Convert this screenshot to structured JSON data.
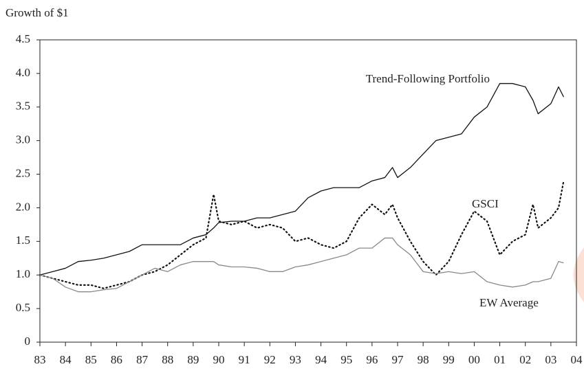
{
  "chart_data": {
    "type": "line",
    "y_label": "Growth of $1",
    "x": [
      83,
      83.5,
      84,
      84.5,
      85,
      85.5,
      86,
      86.5,
      87,
      87.5,
      88,
      88.5,
      89,
      89.5,
      89.8,
      90,
      90.5,
      91,
      91.5,
      92,
      92.5,
      93,
      93.5,
      94,
      94.5,
      95,
      95.5,
      96,
      96.5,
      96.8,
      97,
      97.5,
      98,
      98.5,
      99,
      99.5,
      100,
      100.5,
      101,
      101.5,
      102,
      102.3,
      102.5,
      103,
      103.3,
      103.5
    ],
    "series": [
      {
        "name": "Trend-Following Portfolio",
        "color": "#111111",
        "style": "solid",
        "values": [
          1.0,
          1.05,
          1.1,
          1.2,
          1.22,
          1.25,
          1.3,
          1.35,
          1.45,
          1.45,
          1.45,
          1.45,
          1.55,
          1.6,
          1.7,
          1.78,
          1.8,
          1.8,
          1.85,
          1.85,
          1.9,
          1.95,
          2.15,
          2.25,
          2.3,
          2.3,
          2.3,
          2.4,
          2.45,
          2.6,
          2.45,
          2.6,
          2.8,
          3.0,
          3.05,
          3.1,
          3.35,
          3.5,
          3.85,
          3.85,
          3.8,
          3.6,
          3.4,
          3.55,
          3.8,
          3.65
        ]
      },
      {
        "name": "GSCI",
        "color": "#111111",
        "style": "dotted",
        "values": [
          1.0,
          0.95,
          0.9,
          0.85,
          0.85,
          0.8,
          0.85,
          0.9,
          1.0,
          1.05,
          1.15,
          1.3,
          1.45,
          1.55,
          2.2,
          1.8,
          1.75,
          1.8,
          1.7,
          1.75,
          1.7,
          1.5,
          1.55,
          1.45,
          1.4,
          1.5,
          1.85,
          2.05,
          1.9,
          2.05,
          1.85,
          1.5,
          1.2,
          1.0,
          1.2,
          1.6,
          1.95,
          1.8,
          1.3,
          1.5,
          1.6,
          2.05,
          1.7,
          1.85,
          2.0,
          2.4
        ]
      },
      {
        "name": "EW Average",
        "color": "#888888",
        "style": "solid",
        "values": [
          1.0,
          0.95,
          0.82,
          0.75,
          0.75,
          0.78,
          0.8,
          0.9,
          1.0,
          1.1,
          1.05,
          1.15,
          1.2,
          1.2,
          1.2,
          1.15,
          1.12,
          1.12,
          1.1,
          1.05,
          1.05,
          1.12,
          1.15,
          1.2,
          1.25,
          1.3,
          1.4,
          1.4,
          1.55,
          1.55,
          1.45,
          1.3,
          1.05,
          1.02,
          1.05,
          1.02,
          1.05,
          0.9,
          0.85,
          0.82,
          0.85,
          0.9,
          0.9,
          0.95,
          1.2,
          1.18
        ]
      }
    ],
    "xlim": [
      83,
      104
    ],
    "xticks": [
      83,
      84,
      85,
      86,
      87,
      88,
      89,
      90,
      91,
      92,
      93,
      94,
      95,
      96,
      97,
      98,
      99,
      {
        "value": 100,
        "label": "00"
      },
      {
        "value": 101,
        "label": "01"
      },
      {
        "value": 102,
        "label": "02"
      },
      {
        "value": 103,
        "label": "03"
      },
      {
        "value": 104,
        "label": "04"
      }
    ],
    "ylim": [
      0,
      4.5
    ],
    "yticks": [
      0,
      0.5,
      {
        "value": 1,
        "label": "1.0"
      },
      1.5,
      {
        "value": 2,
        "label": "2.0"
      },
      2.5,
      {
        "value": 3,
        "label": "3.0"
      },
      3.5,
      {
        "value": 4,
        "label": "4.0"
      },
      4.5
    ],
    "grid": false
  }
}
